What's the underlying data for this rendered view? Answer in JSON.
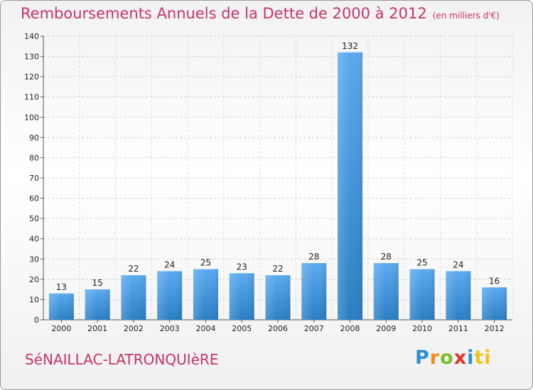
{
  "title": "Remboursements Annuels de la Dette de 2000 à 2012",
  "unit": "(en milliers d'€)",
  "commune": "SéNAILLAC-LATRONQUIèRE",
  "logo": [
    "P",
    "r",
    "o",
    "x",
    "i",
    "ti"
  ],
  "colors": {
    "title": "#c8336a",
    "bar_light": "#5aaaf0",
    "bar_dark": "#2a7fc4"
  },
  "chart_data": {
    "type": "bar",
    "title": "Remboursements Annuels de la Dette de 2000 à 2012",
    "subtitle": "(en milliers d'€)",
    "xlabel": "",
    "ylabel": "",
    "categories": [
      "2000",
      "2001",
      "2002",
      "2003",
      "2004",
      "2005",
      "2006",
      "2007",
      "2008",
      "2009",
      "2010",
      "2011",
      "2012"
    ],
    "values": [
      13,
      15,
      22,
      24,
      25,
      23,
      22,
      28,
      132,
      28,
      25,
      24,
      16
    ],
    "ylim": [
      0,
      140
    ],
    "yticks": [
      0,
      10,
      20,
      30,
      40,
      50,
      60,
      70,
      80,
      90,
      100,
      110,
      120,
      130,
      140
    ],
    "grid": true,
    "legend": "none"
  }
}
